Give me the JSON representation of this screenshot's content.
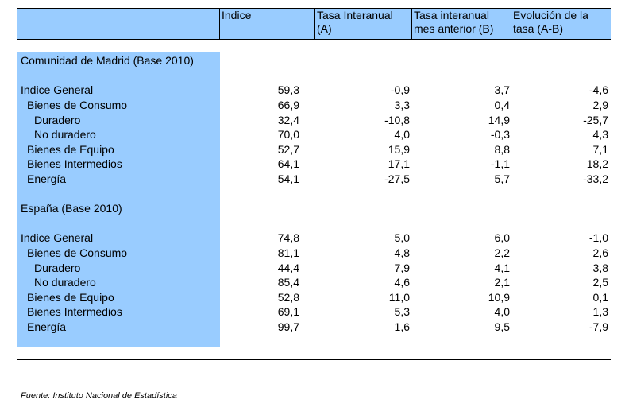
{
  "header": {
    "col1": "Indice",
    "col2_line1": "Tasa Interanual",
    "col2_line2": "(A)",
    "col3_line1": "Tasa interanual",
    "col3_line2": "mes anterior (B)",
    "col4_line1": "Evolución de la",
    "col4_line2": "tasa (A-B)"
  },
  "sections": [
    {
      "title": "Comunidad de Madrid (Base 2010)",
      "rows": [
        {
          "label": "Indice General",
          "indice": "59,3",
          "tasa_a": "-0,9",
          "tasa_b": "3,7",
          "evol": "-4,6"
        },
        {
          "label": "Bienes de Consumo",
          "indice": "66,9",
          "tasa_a": "3,3",
          "tasa_b": "0,4",
          "evol": "2,9"
        },
        {
          "label": "Duradero",
          "indice": "32,4",
          "tasa_a": "-10,8",
          "tasa_b": "14,9",
          "evol": "-25,7"
        },
        {
          "label": "No duradero",
          "indice": "70,0",
          "tasa_a": "4,0",
          "tasa_b": "-0,3",
          "evol": "4,3"
        },
        {
          "label": "Bienes de Equipo",
          "indice": "52,7",
          "tasa_a": "15,9",
          "tasa_b": "8,8",
          "evol": "7,1"
        },
        {
          "label": "Bienes Intermedios",
          "indice": "64,1",
          "tasa_a": "17,1",
          "tasa_b": "-1,1",
          "evol": "18,2"
        },
        {
          "label": "Energía",
          "indice": "54,1",
          "tasa_a": "-27,5",
          "tasa_b": "5,7",
          "evol": "-33,2"
        }
      ]
    },
    {
      "title": "España (Base 2010)",
      "rows": [
        {
          "label": "Indice General",
          "indice": "74,8",
          "tasa_a": "5,0",
          "tasa_b": "6,0",
          "evol": "-1,0"
        },
        {
          "label": "Bienes de Consumo",
          "indice": "81,1",
          "tasa_a": "4,8",
          "tasa_b": "2,2",
          "evol": "2,6"
        },
        {
          "label": "Duradero",
          "indice": "44,4",
          "tasa_a": "7,9",
          "tasa_b": "4,1",
          "evol": "3,8"
        },
        {
          "label": "No duradero",
          "indice": "85,4",
          "tasa_a": "4,6",
          "tasa_b": "2,1",
          "evol": "2,5"
        },
        {
          "label": "Bienes de Equipo",
          "indice": "52,8",
          "tasa_a": "11,0",
          "tasa_b": "10,9",
          "evol": "0,1"
        },
        {
          "label": "Bienes Intermedios",
          "indice": "69,1",
          "tasa_a": "5,3",
          "tasa_b": "4,0",
          "evol": "1,3"
        },
        {
          "label": "Energía",
          "indice": "99,7",
          "tasa_a": "1,6",
          "tasa_b": "9,5",
          "evol": "-7,9"
        }
      ]
    }
  ],
  "footnote": "Fuente: Instituto Nacional de Estadística",
  "colors": {
    "highlight": "#99ccff"
  }
}
